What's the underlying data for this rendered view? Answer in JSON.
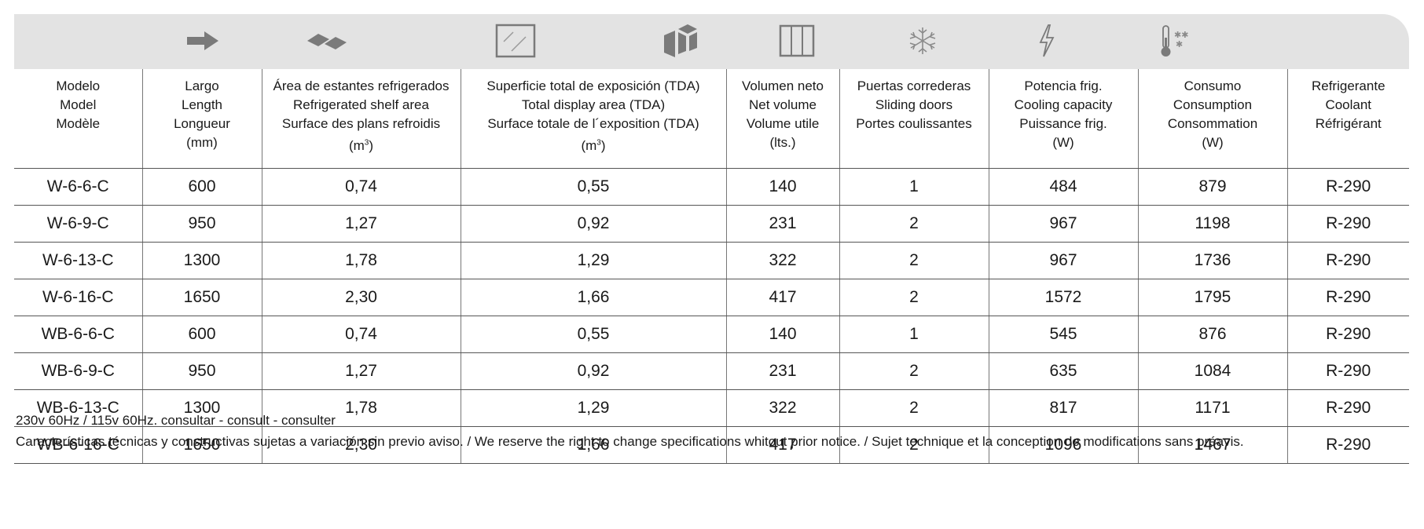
{
  "icons": [
    "arrow-right-icon",
    "shelf-area-icon",
    "display-area-icon",
    "volume-cube-icon",
    "sliding-doors-icon",
    "snowflake-icon",
    "lightning-icon",
    "thermometer-icon"
  ],
  "table": {
    "headers": [
      "Modelo\nModel\nModèle",
      "Largo\nLength\nLongueur\n(mm)",
      "Área de estantes refrigerados\nRefrigerated shelf area\nSurface des plans refroidis",
      "Superficie total de exposición (TDA)\nTotal display area (TDA)\nSurface totale de l´exposition (TDA)",
      "Volumen neto\nNet volume\nVolume utile\n(lts.)",
      "Puertas correderas\nSliding doors\nPortes coulissantes",
      "Potencia frig.\nCooling capacity\nPuissance frig.\n(W)",
      "Consumo\nConsumption\nConsommation\n(W)",
      "Refrigerante\nCoolant\nRéfrigérant"
    ],
    "unit_m3": "(m",
    "unit_m3_sup": "3",
    "unit_m3_close": ")",
    "rows": [
      [
        "W-6-6-C",
        "600",
        "0,74",
        "0,55",
        "140",
        "1",
        "484",
        "879",
        "R-290"
      ],
      [
        "W-6-9-C",
        "950",
        "1,27",
        "0,92",
        "231",
        "2",
        "967",
        "1198",
        "R-290"
      ],
      [
        "W-6-13-C",
        "1300",
        "1,78",
        "1,29",
        "322",
        "2",
        "967",
        "1736",
        "R-290"
      ],
      [
        "W-6-16-C",
        "1650",
        "2,30",
        "1,66",
        "417",
        "2",
        "1572",
        "1795",
        "R-290"
      ],
      [
        "WB-6-6-C",
        "600",
        "0,74",
        "0,55",
        "140",
        "1",
        "545",
        "876",
        "R-290"
      ],
      [
        "WB-6-9-C",
        "950",
        "1,27",
        "0,92",
        "231",
        "2",
        "635",
        "1084",
        "R-290"
      ],
      [
        "WB-6-13-C",
        "1300",
        "1,78",
        "1,29",
        "322",
        "2",
        "817",
        "1171",
        "R-290"
      ],
      [
        "WB-6-16-C",
        "1650",
        "2,30",
        "1,66",
        "417",
        "2",
        "1096",
        "1467",
        "R-290"
      ]
    ]
  },
  "footer": {
    "line1": "230v 60Hz / 115v 60Hz. consultar - consult - consulter",
    "line2": "Características técnicas y constructivas sujetas a variación sin previo aviso. / We reserve the right to change specifications whitout prior notice. / Sujet technique et la conception de modifications sans préavis."
  },
  "colors": {
    "panel": "#e3e3e3",
    "icon": "#7a7a7a",
    "rule": "#555555"
  }
}
